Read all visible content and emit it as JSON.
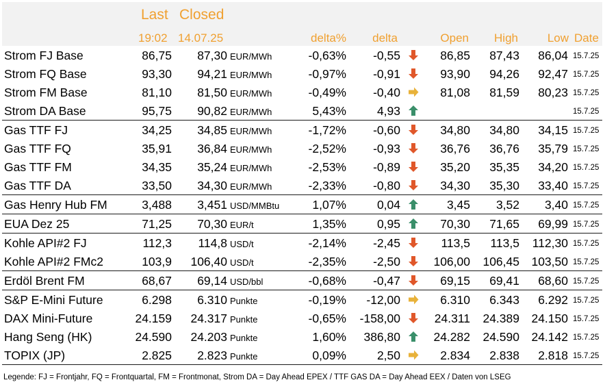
{
  "header": {
    "last": "Last",
    "closed": "Closed",
    "last_time": "19:02",
    "closed_date": "14.07.25",
    "delta_pct": "delta%",
    "delta": "delta",
    "open": "Open",
    "high": "High",
    "low": "Low",
    "date": "Date"
  },
  "colors": {
    "header_text": "#f0a030",
    "down": "#e0572a",
    "up": "#3a8f6a",
    "flat": "#e8b23a"
  },
  "rows": [
    {
      "name": "Strom FJ Base",
      "last": "86,75",
      "closed": "87,30",
      "unit": "EUR/MWh",
      "dpct": "-0,63%",
      "delta": "-0,55",
      "trend": "down",
      "open": "86,85",
      "high": "87,43",
      "low": "86,04",
      "date": "15.7.25",
      "sep": false
    },
    {
      "name": "Strom FQ Base",
      "last": "93,30",
      "closed": "94,21",
      "unit": "EUR/MWh",
      "dpct": "-0,97%",
      "delta": "-0,91",
      "trend": "down",
      "open": "93,90",
      "high": "94,26",
      "low": "92,47",
      "date": "15.7.25",
      "sep": false
    },
    {
      "name": "Strom FM Base",
      "last": "81,10",
      "closed": "81,50",
      "unit": "EUR/MWh",
      "dpct": "-0,49%",
      "delta": "-0,40",
      "trend": "flat",
      "open": "81,08",
      "high": "81,59",
      "low": "80,23",
      "date": "15.7.25",
      "sep": false
    },
    {
      "name": "Strom DA Base",
      "last": "95,75",
      "closed": "90,82",
      "unit": "EUR/MWh",
      "dpct": "5,43%",
      "delta": "4,93",
      "trend": "up",
      "open": "",
      "high": "",
      "low": "",
      "date": "15.7.25",
      "sep": false
    },
    {
      "name": "Gas TTF FJ",
      "last": "34,25",
      "closed": "34,85",
      "unit": "EUR/MWh",
      "dpct": "-1,72%",
      "delta": "-0,60",
      "trend": "down",
      "open": "34,80",
      "high": "34,80",
      "low": "34,15",
      "date": "15.7.25",
      "sep": true
    },
    {
      "name": "Gas TTF FQ",
      "last": "35,91",
      "closed": "36,84",
      "unit": "EUR/MWh",
      "dpct": "-2,52%",
      "delta": "-0,93",
      "trend": "down",
      "open": "36,76",
      "high": "36,76",
      "low": "35,79",
      "date": "15.7.25",
      "sep": false
    },
    {
      "name": "Gas TTF FM",
      "last": "34,35",
      "closed": "35,24",
      "unit": "EUR/MWh",
      "dpct": "-2,53%",
      "delta": "-0,89",
      "trend": "down",
      "open": "35,20",
      "high": "35,35",
      "low": "34,20",
      "date": "15.7.25",
      "sep": false
    },
    {
      "name": "Gas TTF DA",
      "last": "33,50",
      "closed": "34,30",
      "unit": "EUR/MWh",
      "dpct": "-2,33%",
      "delta": "-0,80",
      "trend": "down",
      "open": "34,30",
      "high": "35,30",
      "low": "33,40",
      "date": "15.7.25",
      "sep": false
    },
    {
      "name": "Gas Henry Hub FM",
      "last": "3,488",
      "closed": "3,451",
      "unit": "USD/MMBtu",
      "dpct": "1,07%",
      "delta": "0,04",
      "trend": "up",
      "open": "3,45",
      "high": "3,52",
      "low": "3,40",
      "date": "15.7.25",
      "sep": true
    },
    {
      "name": "EUA Dez 25",
      "last": "71,25",
      "closed": "70,30",
      "unit": "EUR/t",
      "dpct": "1,35%",
      "delta": "0,95",
      "trend": "up",
      "open": "70,30",
      "high": "71,65",
      "low": "69,99",
      "date": "15.7.25",
      "sep": true
    },
    {
      "name": "Kohle API#2 FJ",
      "last": "112,3",
      "closed": "114,8",
      "unit": "USD/t",
      "dpct": "-2,14%",
      "delta": "-2,45",
      "trend": "down",
      "open": "113,5",
      "high": "113,5",
      "low": "112,30",
      "date": "15.7.25",
      "sep": true
    },
    {
      "name": "Kohle API#2 FMc2",
      "last": "103,9",
      "closed": "106,40",
      "unit": "USD/t",
      "dpct": "-2,35%",
      "delta": "-2,50",
      "trend": "down",
      "open": "106,00",
      "high": "106,45",
      "low": "103,50",
      "date": "15.7.25",
      "sep": false
    },
    {
      "name": "Erdöl Brent FM",
      "last": "68,67",
      "closed": "69,14",
      "unit": "USD/bbl",
      "dpct": "-0,68%",
      "delta": "-0,47",
      "trend": "down",
      "open": "69,15",
      "high": "69,41",
      "low": "68,60",
      "date": "15.7.25",
      "sep": true
    },
    {
      "name": "S&P E-Mini Future",
      "last": "6.298",
      "closed": "6.310",
      "unit": "Punkte",
      "dpct": "-0,19%",
      "delta": "-12,00",
      "trend": "flat",
      "open": "6.310",
      "high": "6.343",
      "low": "6.292",
      "date": "15.7.25",
      "sep": true
    },
    {
      "name": "DAX Mini-Future",
      "last": "24.159",
      "closed": "24.317",
      "unit": "Punkte",
      "dpct": "-0,65%",
      "delta": "-158,00",
      "trend": "down",
      "open": "24.311",
      "high": "24.389",
      "low": "24.150",
      "date": "15.7.25",
      "sep": false
    },
    {
      "name": "Hang Seng (HK)",
      "last": "24.590",
      "closed": "24.203",
      "unit": "Punkte",
      "dpct": "1,60%",
      "delta": "386,80",
      "trend": "up",
      "open": "24.282",
      "high": "24.590",
      "low": "24.142",
      "date": "15.7.25",
      "sep": false
    },
    {
      "name": "TOPIX (JP)",
      "last": "2.825",
      "closed": "2.823",
      "unit": "Punkte",
      "dpct": "0,09%",
      "delta": "2,50",
      "trend": "flat",
      "open": "2.834",
      "high": "2.838",
      "low": "2.818",
      "date": "15.7.25",
      "sep": false
    }
  ],
  "legend": "Legende: FJ = Frontjahr, FQ = Frontquartal, FM = Frontmonat, Strom DA = Day Ahead EPEX / TTF GAS DA = Day Ahead EEX / Daten von LSEG"
}
